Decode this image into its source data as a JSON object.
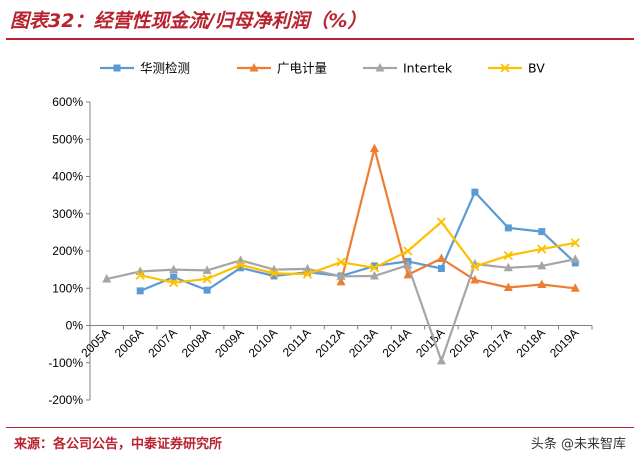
{
  "title": "图表32：经营性现金流/归母净利润（%）",
  "source": "来源：各公司公告，中泰证券研究所",
  "watermark": "头条 @未来智库",
  "chart_data": {
    "type": "line",
    "categories": [
      "2005A",
      "2006A",
      "2007A",
      "2008A",
      "2009A",
      "2010A",
      "2011A",
      "2012A",
      "2013A",
      "2014A",
      "2015A",
      "2016A",
      "2017A",
      "2018A",
      "2019A"
    ],
    "ylim": [
      -200,
      600
    ],
    "yticks": [
      -200,
      -100,
      0,
      100,
      200,
      300,
      400,
      500,
      600
    ],
    "ytick_labels": [
      "-200%",
      "-100%",
      "0%",
      "100%",
      "200%",
      "300%",
      "400%",
      "500%",
      "600%"
    ],
    "legend_position": "top",
    "grid": false,
    "series": [
      {
        "name": "华测检测",
        "color": "#5b9bd5",
        "marker": "square",
        "values": [
          null,
          93,
          130,
          95,
          155,
          133,
          143,
          133,
          160,
          172,
          153,
          358,
          262,
          252,
          168
        ]
      },
      {
        "name": "广电计量",
        "color": "#ed7d31",
        "marker": "triangle",
        "values": [
          null,
          null,
          null,
          null,
          null,
          null,
          null,
          117,
          475,
          136,
          180,
          122,
          102,
          110,
          100
        ]
      },
      {
        "name": "Intertek",
        "color": "#a5a5a5",
        "marker": "triangle",
        "values": [
          125,
          145,
          150,
          148,
          175,
          150,
          152,
          132,
          133,
          162,
          -95,
          165,
          155,
          160,
          178
        ]
      },
      {
        "name": "BV",
        "color": "#ffc000",
        "marker": "x",
        "values": [
          null,
          135,
          115,
          125,
          163,
          140,
          138,
          170,
          155,
          200,
          278,
          158,
          188,
          205,
          222
        ]
      }
    ]
  }
}
